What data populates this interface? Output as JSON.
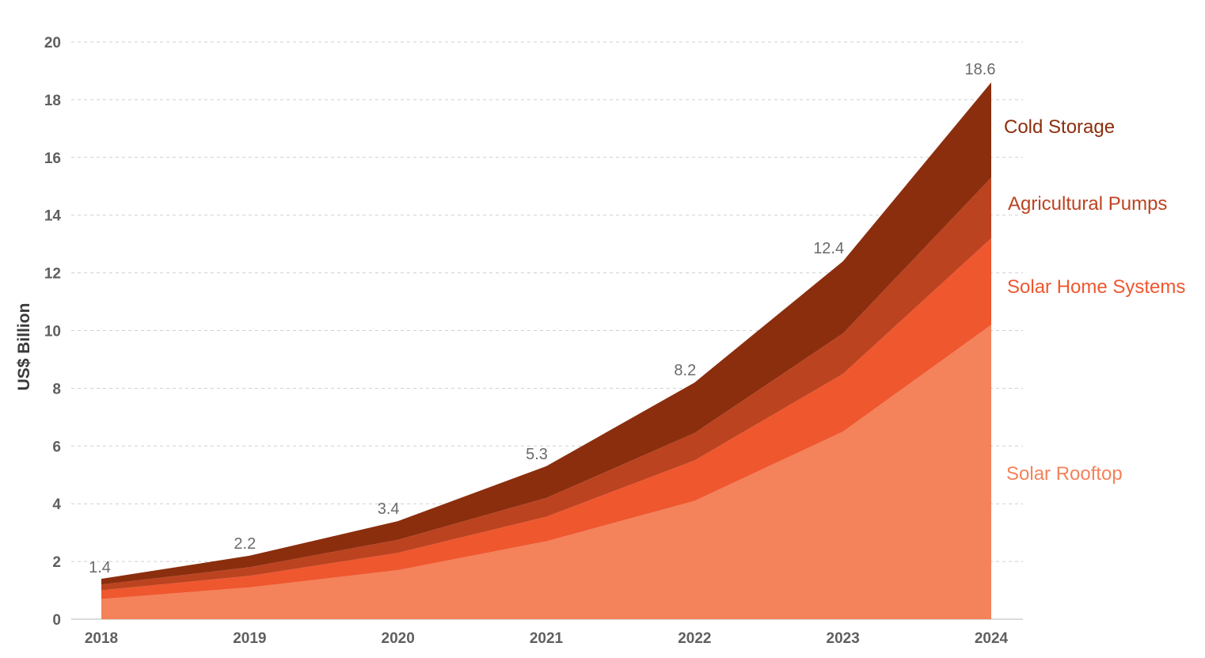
{
  "chart_data": {
    "type": "area",
    "stacked": true,
    "ylabel": "US$ Billion",
    "xlabel": "",
    "ylim": [
      0,
      20
    ],
    "yticks": [
      0,
      2,
      4,
      6,
      8,
      10,
      12,
      14,
      16,
      18,
      20
    ],
    "grid": true,
    "categories": [
      "2018",
      "2019",
      "2020",
      "2021",
      "2022",
      "2023",
      "2024"
    ],
    "series": [
      {
        "name": "Solar Rooftop",
        "color": "#f4825a",
        "values": [
          0.7,
          1.1,
          1.7,
          2.7,
          4.1,
          6.5,
          10.2
        ]
      },
      {
        "name": "Solar Home Systems",
        "color": "#ef572f",
        "values": [
          0.3,
          0.4,
          0.6,
          0.85,
          1.4,
          2.0,
          3.0
        ]
      },
      {
        "name": "Agricultural Pumps",
        "color": "#bc4320",
        "values": [
          0.2,
          0.3,
          0.45,
          0.65,
          0.95,
          1.4,
          2.1
        ]
      },
      {
        "name": "Cold Storage",
        "color": "#8b2e0e",
        "values": [
          0.2,
          0.4,
          0.65,
          1.1,
          1.75,
          2.5,
          3.3
        ]
      }
    ],
    "totals": [
      "1.4",
      "2.2",
      "3.4",
      "5.3",
      "8.2",
      "12.4",
      "18.6"
    ],
    "legend": "right, inline labels next to 2024"
  }
}
